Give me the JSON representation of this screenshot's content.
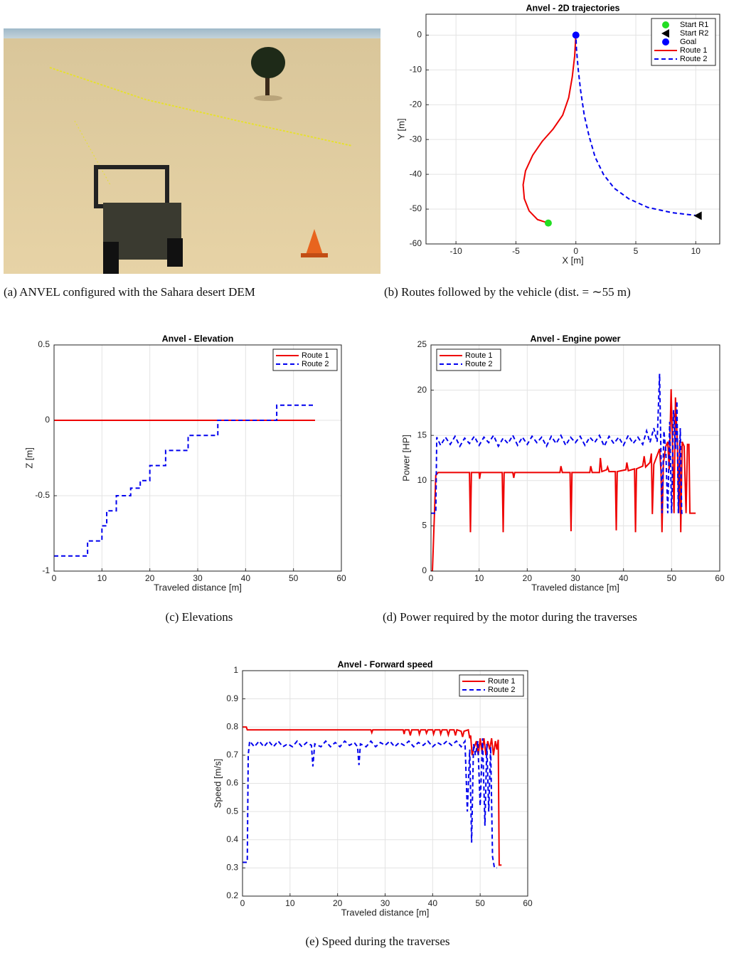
{
  "panel_a": {
    "caption": "(a) ANVEL configured with the Sahara desert DEM"
  },
  "chart_data": [
    {
      "type": "line",
      "title": "Anvel - 2D trajectories",
      "xlabel": "X [m]",
      "ylabel": "Y [m]",
      "caption": "(b) Routes followed by the vehicle (dist. = ∼55 m)",
      "xlim": [
        -12.5,
        12
      ],
      "ylim": [
        -60,
        6
      ],
      "xticks": [
        -10,
        -5,
        0,
        5,
        10
      ],
      "yticks": [
        -60,
        -50,
        -40,
        -30,
        -20,
        -10,
        0
      ],
      "grid": true,
      "legend": "northeast",
      "series": [
        {
          "name": "Start R1",
          "color": "#22dd22",
          "marker": "circle",
          "x": [
            -2.3
          ],
          "values": [
            -54
          ]
        },
        {
          "name": "Start R2",
          "color": "#000000",
          "marker": "triangle-left",
          "x": [
            10.2
          ],
          "values": [
            -51.9
          ]
        },
        {
          "name": "Goal",
          "color": "#0000ff",
          "marker": "circle",
          "x": [
            0
          ],
          "values": [
            0
          ]
        },
        {
          "name": "Route 1",
          "color": "#ee0000",
          "style": "solid",
          "x": [
            -2.3,
            -3.2,
            -3.9,
            -4.3,
            -4.4,
            -4.2,
            -3.6,
            -2.8,
            -1.9,
            -1.1,
            -0.6,
            -0.3,
            -0.1,
            0
          ],
          "values": [
            -54,
            -53,
            -50.5,
            -47,
            -43,
            -39,
            -34.5,
            -30.5,
            -27,
            -23,
            -18,
            -12,
            -6,
            0
          ]
        },
        {
          "name": "Route 2",
          "color": "#0000ee",
          "style": "dashed",
          "x": [
            10.2,
            8,
            6,
            4.4,
            3.2,
            2.3,
            1.6,
            1.1,
            0.7,
            0.4,
            0.2,
            0.05,
            0
          ],
          "values": [
            -51.9,
            -51,
            -49.5,
            -47,
            -44,
            -40,
            -35,
            -29,
            -23,
            -16,
            -10,
            -4,
            0
          ]
        }
      ]
    },
    {
      "type": "line",
      "title": "Anvel - Elevation",
      "xlabel": "Traveled distance [m]",
      "ylabel": "Z [m]",
      "caption": "(c) Elevations",
      "xlim": [
        0,
        60
      ],
      "ylim": [
        -1,
        0.5
      ],
      "xticks": [
        0,
        10,
        20,
        30,
        40,
        50,
        60
      ],
      "yticks": [
        -1,
        -0.5,
        0,
        0.5
      ],
      "grid": true,
      "legend": "northeast",
      "series": [
        {
          "name": "Route 1",
          "color": "#ee0000",
          "style": "solid",
          "x": [
            0,
            54.5
          ],
          "values": [
            0,
            0
          ]
        },
        {
          "name": "Route 2",
          "color": "#0000ee",
          "style": "dashed",
          "x": [
            0,
            7,
            7,
            10,
            10,
            11,
            11,
            13,
            13,
            16,
            16,
            18,
            18,
            20,
            20,
            23.3,
            23.3,
            28,
            28,
            34.2,
            34.2,
            46.5,
            46.5,
            54.5
          ],
          "values": [
            -0.9,
            -0.9,
            -0.8,
            -0.8,
            -0.7,
            -0.7,
            -0.6,
            -0.6,
            -0.5,
            -0.5,
            -0.45,
            -0.45,
            -0.4,
            -0.4,
            -0.3,
            -0.3,
            -0.2,
            -0.2,
            -0.1,
            -0.1,
            0,
            0,
            0.1,
            0.1
          ]
        }
      ]
    },
    {
      "type": "line",
      "title": "Anvel - Engine power",
      "xlabel": "Traveled distance [m]",
      "ylabel": "Power [HP]",
      "caption": "(d) Power required by the motor during the traverses",
      "xlim": [
        0,
        60
      ],
      "ylim": [
        0,
        25
      ],
      "xticks": [
        0,
        10,
        20,
        30,
        40,
        50,
        60
      ],
      "yticks": [
        0,
        5,
        10,
        15,
        20,
        25
      ],
      "grid": true,
      "legend": "northwest",
      "series": [
        {
          "name": "Route 1",
          "color": "#ee0000",
          "style": "solid",
          "x": [
            0,
            0.3,
            1,
            1.5,
            8,
            8.2,
            8.4,
            10,
            10.1,
            10.3,
            14.8,
            15,
            15.2,
            17,
            17.2,
            17.4,
            26.8,
            27,
            27.3,
            28.9,
            29.1,
            29.3,
            33,
            33.2,
            33.5,
            35,
            35.2,
            35.5,
            36.5,
            36.7,
            37,
            38.3,
            38.5,
            38.7,
            40.5,
            40.7,
            41,
            42.3,
            42.5,
            42.7,
            44,
            44.3,
            44.6,
            45.5,
            45.8,
            46,
            46.3,
            47.5,
            47.8,
            48,
            48.3,
            48.8,
            49.2,
            49.5,
            49.9,
            50.2,
            50.5,
            50.8,
            51.2,
            51.5,
            51.7,
            51.9,
            52.2,
            52.6,
            53,
            53.3,
            53.6,
            53.8,
            55
          ],
          "values": [
            0,
            0,
            10.6,
            10.9,
            10.9,
            4.3,
            10.9,
            10.9,
            10.2,
            10.9,
            10.9,
            4.3,
            10.9,
            10.9,
            10.3,
            10.9,
            10.9,
            11.6,
            10.9,
            10.9,
            4.4,
            10.9,
            10.9,
            11.6,
            10.9,
            10.9,
            12.5,
            11,
            11.2,
            11.5,
            11,
            11,
            4.5,
            11,
            11.2,
            12,
            11.1,
            11.3,
            4.3,
            11.3,
            11.6,
            12.7,
            11.5,
            12,
            13,
            6.3,
            11.8,
            13.5,
            11,
            4.3,
            12,
            13.8,
            14.3,
            11.2,
            20.1,
            14,
            6.4,
            19.2,
            14,
            6.4,
            14.5,
            4.3,
            14.3,
            13.8,
            6.4,
            14,
            14,
            6.4,
            6.4
          ]
        },
        {
          "name": "Route 2",
          "color": "#0000ee",
          "style": "dashed",
          "x": [
            0,
            1,
            1.2,
            2,
            3,
            4,
            5,
            6,
            7,
            8,
            9,
            10,
            11,
            12,
            13,
            14,
            15,
            16,
            17,
            18,
            19,
            20,
            21,
            22,
            23,
            24,
            25,
            26,
            27,
            28,
            29,
            30,
            31,
            32,
            33,
            34,
            35,
            36,
            37,
            38,
            39,
            40,
            41,
            42,
            43,
            44,
            44.8,
            45.5,
            46.3,
            47,
            47.5,
            48,
            48.4,
            48.8,
            49.2,
            49.6,
            50,
            50.4,
            50.8,
            51.1,
            51.4,
            51.8,
            52.1,
            52.4
          ],
          "values": [
            6.4,
            6.4,
            14.8,
            13.9,
            14.8,
            14,
            14.9,
            13.8,
            14.7,
            14.1,
            14.9,
            13.9,
            14.8,
            14.2,
            15,
            13.8,
            14.7,
            14.1,
            15,
            13.9,
            14.8,
            14,
            14.9,
            14.2,
            14.8,
            13.8,
            14.9,
            14.1,
            15,
            13.9,
            14.8,
            14.2,
            14.9,
            13.9,
            14.8,
            14.2,
            15,
            13.8,
            14.9,
            14.1,
            14.8,
            13.9,
            15,
            14.1,
            14.8,
            14,
            15.5,
            14.2,
            15.8,
            14.3,
            21.8,
            6.4,
            15.5,
            13.2,
            6.4,
            16.5,
            6.4,
            17.8,
            13.5,
            18.8,
            6.4,
            15.8,
            6.4,
            6.4
          ]
        }
      ]
    },
    {
      "type": "line",
      "title": "Anvel - Forward speed",
      "xlabel": "Traveled distance [m]",
      "ylabel": "Speed [m/s]",
      "caption": "(e) Speed during the traverses",
      "xlim": [
        0,
        60
      ],
      "ylim": [
        0.2,
        1
      ],
      "xticks": [
        0,
        10,
        20,
        30,
        40,
        50,
        60
      ],
      "yticks": [
        0.2,
        0.3,
        0.4,
        0.5,
        0.6,
        0.7,
        0.8,
        0.9,
        1
      ],
      "grid": true,
      "legend": "northeast",
      "series": [
        {
          "name": "Route 1",
          "color": "#ee0000",
          "style": "solid",
          "x": [
            0,
            0.8,
            1,
            27,
            27.2,
            27.4,
            33.8,
            34,
            34.2,
            35,
            35.3,
            35.6,
            37,
            37.2,
            37.5,
            38.5,
            38.7,
            39,
            40,
            40.2,
            40.5,
            41.5,
            41.7,
            42,
            43,
            43.3,
            43.6,
            44.5,
            44.8,
            45.1,
            46,
            46.3,
            46.6,
            47.5,
            47.8,
            48,
            48.3,
            48.6,
            49.2,
            49.6,
            50,
            50.4,
            50.8,
            51.2,
            51.6,
            52,
            52.4,
            52.8,
            53.2,
            53.5,
            53.8,
            54,
            54.5
          ],
          "values": [
            0.8,
            0.8,
            0.79,
            0.79,
            0.78,
            0.79,
            0.79,
            0.775,
            0.79,
            0.79,
            0.77,
            0.79,
            0.79,
            0.775,
            0.79,
            0.79,
            0.778,
            0.79,
            0.79,
            0.775,
            0.79,
            0.79,
            0.775,
            0.79,
            0.79,
            0.772,
            0.79,
            0.79,
            0.77,
            0.79,
            0.785,
            0.765,
            0.785,
            0.79,
            0.76,
            0.77,
            0.7,
            0.72,
            0.75,
            0.7,
            0.76,
            0.71,
            0.76,
            0.7,
            0.75,
            0.72,
            0.76,
            0.7,
            0.75,
            0.72,
            0.755,
            0.31,
            0.31
          ]
        },
        {
          "name": "Route 2",
          "color": "#0000ee",
          "style": "dashed",
          "x": [
            0,
            1,
            1.2,
            1.5,
            2.5,
            3.5,
            4.5,
            5.5,
            6.5,
            7.5,
            8.5,
            9.5,
            10.5,
            11.5,
            12.5,
            13.5,
            14.5,
            14.8,
            15.2,
            16.5,
            17.5,
            18.5,
            19.5,
            20.5,
            21.5,
            22.5,
            23.5,
            24.2,
            24.5,
            24.8,
            26,
            27,
            28,
            29,
            30,
            31,
            32,
            33,
            34,
            35,
            36,
            37,
            38,
            39,
            40,
            41,
            42,
            43,
            44,
            45,
            46,
            46.8,
            47.3,
            47.8,
            48.2,
            48.6,
            49,
            49.5,
            50,
            50.5,
            51,
            51.4,
            51.8,
            52.2,
            52.6,
            53,
            53.5
          ],
          "values": [
            0.32,
            0.32,
            0.7,
            0.75,
            0.73,
            0.75,
            0.73,
            0.75,
            0.73,
            0.75,
            0.73,
            0.74,
            0.73,
            0.75,
            0.73,
            0.745,
            0.735,
            0.66,
            0.74,
            0.73,
            0.75,
            0.73,
            0.745,
            0.73,
            0.75,
            0.735,
            0.745,
            0.73,
            0.665,
            0.74,
            0.73,
            0.75,
            0.73,
            0.745,
            0.735,
            0.75,
            0.73,
            0.745,
            0.735,
            0.75,
            0.73,
            0.745,
            0.735,
            0.75,
            0.73,
            0.745,
            0.735,
            0.75,
            0.735,
            0.75,
            0.73,
            0.75,
            0.5,
            0.72,
            0.39,
            0.74,
            0.7,
            0.75,
            0.52,
            0.76,
            0.45,
            0.74,
            0.5,
            0.73,
            0.34,
            0.3,
            0.3
          ]
        }
      ]
    }
  ]
}
